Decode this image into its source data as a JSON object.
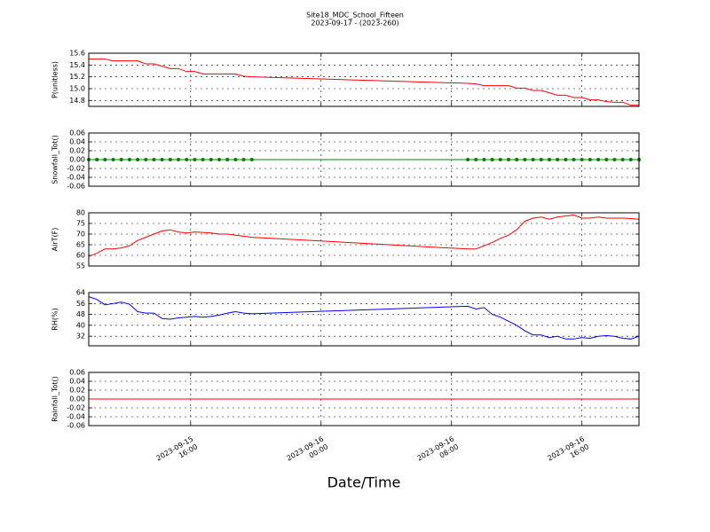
{
  "title": "Site18_MDC_School_Fifteen",
  "subtitle": "2023-09-17 - (2023-260)",
  "xlabel": "Date/Time",
  "xlim": [
    "2023-09-15 09:45",
    "2023-09-16 19:30"
  ],
  "xticks": [
    "2023-09-15 16:00",
    "2023-09-16 00:00",
    "2023-09-16 08:00",
    "2023-09-16 16:00"
  ],
  "x": [
    "2023-09-15 09:45",
    "2023-09-15 10:15",
    "2023-09-15 10:45",
    "2023-09-15 11:15",
    "2023-09-15 11:45",
    "2023-09-15 12:15",
    "2023-09-15 12:45",
    "2023-09-15 13:15",
    "2023-09-15 13:45",
    "2023-09-15 14:15",
    "2023-09-15 14:45",
    "2023-09-15 15:15",
    "2023-09-15 15:45",
    "2023-09-15 16:15",
    "2023-09-15 16:45",
    "2023-09-15 17:15",
    "2023-09-15 17:45",
    "2023-09-15 18:15",
    "2023-09-15 18:45",
    "2023-09-15 19:15",
    "2023-09-15 19:45",
    "2023-09-16 09:00",
    "2023-09-16 09:30",
    "2023-09-16 10:00",
    "2023-09-16 10:30",
    "2023-09-16 11:00",
    "2023-09-16 11:30",
    "2023-09-16 12:00",
    "2023-09-16 12:30",
    "2023-09-16 13:00",
    "2023-09-16 13:30",
    "2023-09-16 14:00",
    "2023-09-16 14:30",
    "2023-09-16 15:00",
    "2023-09-16 15:30",
    "2023-09-16 16:00",
    "2023-09-16 16:30",
    "2023-09-16 17:00",
    "2023-09-16 17:30",
    "2023-09-16 18:00",
    "2023-09-16 18:30",
    "2023-09-16 19:00",
    "2023-09-16 19:30"
  ],
  "chart_data": [
    {
      "type": "line",
      "ylabel": "P(unitless)",
      "ylim": [
        14.7,
        15.6
      ],
      "yticks": [
        14.8,
        {
          "value": 15,
          "label": "15.0"
        },
        15.2,
        15.4,
        15.6
      ],
      "grid": true,
      "series": [
        {
          "color": "#ff0000",
          "markers": false,
          "values": [
            15.5,
            15.5,
            15.5,
            15.47,
            15.47,
            15.47,
            15.47,
            15.42,
            15.42,
            15.38,
            15.34,
            15.34,
            15.29,
            15.29,
            15.25,
            15.25,
            15.25,
            15.25,
            15.25,
            15.21,
            15.2,
            15.09,
            15.08,
            15.05,
            15.05,
            15.05,
            15.05,
            15.01,
            15.01,
            14.97,
            14.97,
            14.93,
            14.89,
            14.89,
            14.85,
            14.85,
            14.81,
            14.81,
            14.78,
            14.77,
            14.77,
            14.72,
            14.72
          ]
        }
      ]
    },
    {
      "type": "line",
      "ylabel": "Snowfall_Tot()",
      "ylim": [
        -0.06,
        0.06
      ],
      "yticks": [
        -0.06,
        -0.04,
        -0.02,
        {
          "value": 0,
          "label": "0.00"
        },
        0.02,
        0.04,
        0.06
      ],
      "grid": true,
      "series": [
        {
          "color": "#008000",
          "markers": true,
          "values": [
            0,
            0,
            0,
            0,
            0,
            0,
            0,
            0,
            0,
            0,
            0,
            0,
            0,
            0,
            0,
            0,
            0,
            0,
            0,
            0,
            0,
            0,
            0,
            0,
            0,
            0,
            0,
            0,
            0,
            0,
            0,
            0,
            0,
            0,
            0,
            0,
            0,
            0,
            0,
            0,
            0,
            0,
            0
          ]
        }
      ]
    },
    {
      "type": "line",
      "ylabel": "AirT(F)",
      "ylim": [
        55,
        80
      ],
      "yticks": [
        55,
        60,
        65,
        70,
        75,
        80
      ],
      "grid": true,
      "series": [
        {
          "color": "#ff0000",
          "markers": false,
          "values": [
            59.5,
            61,
            63,
            63,
            63.5,
            64.5,
            67,
            68.5,
            70,
            71.5,
            72,
            71,
            70.5,
            71,
            70.8,
            70.5,
            70,
            70,
            69.5,
            69,
            68.5,
            63,
            63,
            64.5,
            66,
            68,
            69.5,
            72,
            76,
            77.5,
            78,
            77,
            78,
            78.5,
            79,
            77.5,
            77.5,
            78,
            77.5,
            77.5,
            77.5,
            77.3,
            77
          ]
        }
      ]
    },
    {
      "type": "line",
      "ylabel": "RH(%)",
      "ylim": [
        25,
        64
      ],
      "yticks": [
        32,
        40,
        48,
        56,
        64
      ],
      "grid": true,
      "series": [
        {
          "color": "#0000ff",
          "markers": false,
          "values": [
            61,
            59,
            55,
            56,
            57,
            55.5,
            50,
            49,
            49,
            45,
            44.5,
            45.5,
            46,
            46.5,
            46,
            46.5,
            47.5,
            49,
            50,
            49,
            48.5,
            54,
            52,
            53,
            48,
            46,
            43,
            40,
            36,
            33,
            33,
            31,
            32,
            30,
            30,
            31,
            30.5,
            32,
            32.5,
            32,
            30.5,
            30,
            32
          ]
        }
      ]
    },
    {
      "type": "line",
      "ylabel": "Rainfall_Tot()",
      "ylim": [
        -0.06,
        0.06
      ],
      "yticks": [
        -0.06,
        -0.04,
        -0.02,
        {
          "value": 0,
          "label": "0.00"
        },
        0.02,
        0.04,
        0.06
      ],
      "grid": true,
      "series": [
        {
          "color": "#ff0000",
          "markers": false,
          "values": [
            0,
            0,
            0,
            0,
            0,
            0,
            0,
            0,
            0,
            0,
            0,
            0,
            0,
            0,
            0,
            0,
            0,
            0,
            0,
            0,
            0,
            0,
            0,
            0,
            0,
            0,
            0,
            0,
            0,
            0,
            0,
            0,
            0,
            0,
            0,
            0,
            0,
            0,
            0,
            0,
            0,
            0,
            0
          ]
        }
      ]
    }
  ]
}
